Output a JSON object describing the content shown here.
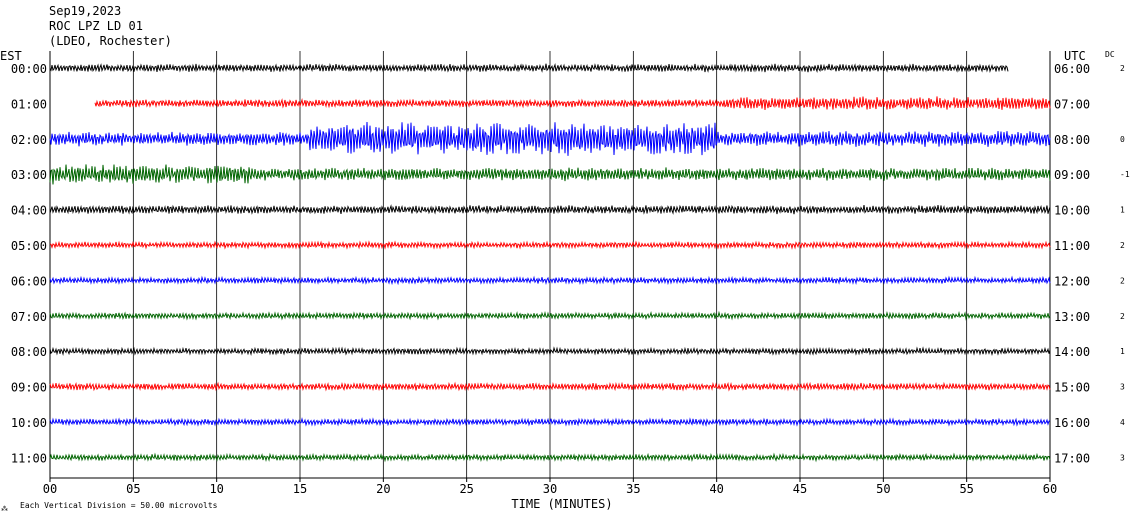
{
  "header": {
    "date": "Sep19,2023",
    "station": "ROC LPZ LD 01",
    "network": "(LDEO, Rochester)",
    "left_tz": "EST",
    "right_tz": "UTC",
    "dc_label": "DC"
  },
  "footer": {
    "xlabel": "TIME (MINUTES)",
    "scale_note": "Each Vertical Division =   50.00 microvolts",
    "corner_mark": "⁂"
  },
  "colors": {
    "black": "#000000",
    "red": "#ff0000",
    "blue": "#0000ff",
    "green": "#006400",
    "grid": "#000000"
  },
  "chart_data": {
    "type": "line",
    "title": "ROC LPZ LD 01",
    "xlabel": "TIME (MINUTES)",
    "xlim": [
      0,
      60
    ],
    "x_ticks": [
      "00",
      "05",
      "10",
      "15",
      "20",
      "25",
      "30",
      "35",
      "40",
      "45",
      "50",
      "55",
      "60"
    ],
    "rows": [
      {
        "est": "00:00",
        "utc": "06:00",
        "dc": "2",
        "color": "black",
        "start_min": 0,
        "end_min": 57.5,
        "amp": 0.9,
        "bursts": []
      },
      {
        "est": "01:00",
        "utc": "07:00",
        "dc": "",
        "color": "red",
        "start_min": 2.7,
        "end_min": 60,
        "amp": 0.9,
        "bursts": [
          [
            40.5,
            60,
            1.6
          ]
        ]
      },
      {
        "est": "02:00",
        "utc": "08:00",
        "dc": "0",
        "color": "blue",
        "start_min": 0,
        "end_min": 60,
        "amp": 1.6,
        "bursts": [
          [
            15.5,
            40,
            3.8
          ],
          [
            40,
            60,
            1.8
          ]
        ]
      },
      {
        "est": "03:00",
        "utc": "09:00",
        "dc": "-1",
        "color": "green",
        "start_min": 0,
        "end_min": 60,
        "amp": 1.5,
        "bursts": [
          [
            0,
            12,
            2.2
          ]
        ]
      },
      {
        "est": "04:00",
        "utc": "10:00",
        "dc": "1",
        "color": "black",
        "start_min": 0,
        "end_min": 60,
        "amp": 1.0,
        "bursts": []
      },
      {
        "est": "05:00",
        "utc": "11:00",
        "dc": "2",
        "color": "red",
        "start_min": 0,
        "end_min": 60,
        "amp": 0.7,
        "bursts": []
      },
      {
        "est": "06:00",
        "utc": "12:00",
        "dc": "2",
        "color": "blue",
        "start_min": 0,
        "end_min": 60,
        "amp": 0.7,
        "bursts": []
      },
      {
        "est": "07:00",
        "utc": "13:00",
        "dc": "2",
        "color": "green",
        "start_min": 0,
        "end_min": 60,
        "amp": 0.7,
        "bursts": []
      },
      {
        "est": "08:00",
        "utc": "14:00",
        "dc": "1",
        "color": "black",
        "start_min": 0,
        "end_min": 60,
        "amp": 0.7,
        "bursts": []
      },
      {
        "est": "09:00",
        "utc": "15:00",
        "dc": "3",
        "color": "red",
        "start_min": 0,
        "end_min": 60,
        "amp": 0.8,
        "bursts": []
      },
      {
        "est": "10:00",
        "utc": "16:00",
        "dc": "4",
        "color": "blue",
        "start_min": 0,
        "end_min": 60,
        "amp": 0.7,
        "bursts": []
      },
      {
        "est": "11:00",
        "utc": "17:00",
        "dc": "3",
        "color": "green",
        "start_min": 0,
        "end_min": 60,
        "amp": 0.7,
        "bursts": []
      }
    ]
  }
}
